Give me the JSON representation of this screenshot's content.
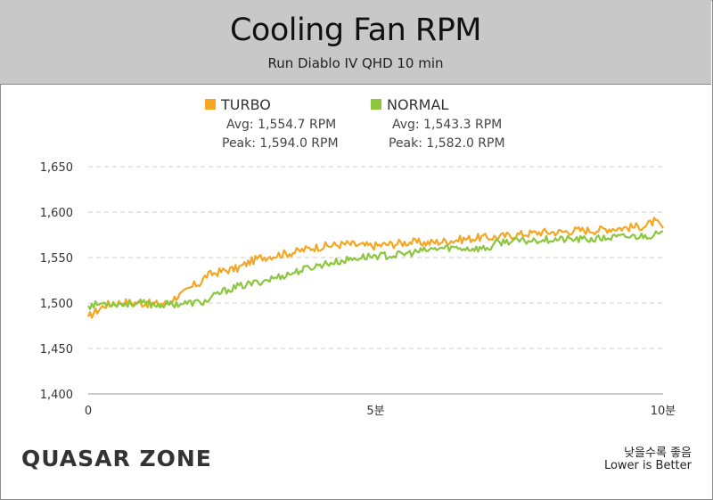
{
  "header": {
    "title": "Cooling Fan RPM",
    "subtitle": "Run Diablo IV QHD 10 min"
  },
  "legend": [
    {
      "name": "TURBO",
      "avg": "Avg: 1,554.7 RPM",
      "peak": "Peak: 1,594.0 RPM",
      "color": "#f5a623"
    },
    {
      "name": "NORMAL",
      "avg": "Avg: 1,543.3 RPM",
      "peak": "Peak: 1,582.0 RPM",
      "color": "#8dc63f"
    }
  ],
  "footer": {
    "brand": "QUASAR ZONE",
    "note_ko": "낮을수록 좋음",
    "note_en": "Lower is Better"
  },
  "chart_data": {
    "type": "line",
    "x_ticks": [
      "0",
      "5분",
      "10분"
    ],
    "x_range": [
      0,
      10
    ],
    "y_ticks": [
      "1,400",
      "1,450",
      "1,500",
      "1,550",
      "1,600",
      "1,650"
    ],
    "ylim": [
      1400,
      1650
    ],
    "grid": "horizontal dashed",
    "series": [
      {
        "name": "TURBO",
        "color": "#f5a623",
        "points": [
          [
            0,
            1485
          ],
          [
            0.3,
            1498
          ],
          [
            0.6,
            1501
          ],
          [
            0.9,
            1500
          ],
          [
            1.2,
            1499
          ],
          [
            1.4,
            1500
          ],
          [
            1.55,
            1508
          ],
          [
            1.65,
            1510
          ],
          [
            1.75,
            1515
          ],
          [
            1.85,
            1520
          ],
          [
            1.95,
            1522
          ],
          [
            2.05,
            1530
          ],
          [
            2.2,
            1533
          ],
          [
            2.4,
            1536
          ],
          [
            2.6,
            1538
          ],
          [
            2.8,
            1545
          ],
          [
            3.0,
            1550
          ],
          [
            3.3,
            1553
          ],
          [
            3.6,
            1556
          ],
          [
            3.9,
            1561
          ],
          [
            4.2,
            1563
          ],
          [
            4.5,
            1565
          ],
          [
            4.8,
            1563
          ],
          [
            5.0,
            1563
          ],
          [
            5.3,
            1565
          ],
          [
            5.6,
            1567
          ],
          [
            5.9,
            1566
          ],
          [
            6.2,
            1568
          ],
          [
            6.5,
            1570
          ],
          [
            6.8,
            1572
          ],
          [
            7.0,
            1572
          ],
          [
            7.3,
            1574
          ],
          [
            7.6,
            1576
          ],
          [
            7.9,
            1578
          ],
          [
            8.2,
            1578
          ],
          [
            8.5,
            1580
          ],
          [
            8.8,
            1580
          ],
          [
            9.1,
            1582
          ],
          [
            9.4,
            1583
          ],
          [
            9.7,
            1585
          ],
          [
            9.85,
            1590
          ],
          [
            10.0,
            1582
          ]
        ]
      },
      {
        "name": "NORMAL",
        "color": "#8dc63f",
        "points": [
          [
            0,
            1497
          ],
          [
            0.3,
            1500
          ],
          [
            0.6,
            1499
          ],
          [
            0.9,
            1500
          ],
          [
            1.2,
            1498
          ],
          [
            1.5,
            1499
          ],
          [
            1.8,
            1500
          ],
          [
            2.0,
            1501
          ],
          [
            2.1,
            1503
          ],
          [
            2.2,
            1508
          ],
          [
            2.35,
            1513
          ],
          [
            2.6,
            1518
          ],
          [
            2.9,
            1522
          ],
          [
            3.2,
            1527
          ],
          [
            3.5,
            1532
          ],
          [
            3.8,
            1538
          ],
          [
            4.1,
            1543
          ],
          [
            4.4,
            1546
          ],
          [
            4.7,
            1550
          ],
          [
            5.0,
            1552
          ],
          [
            5.3,
            1552
          ],
          [
            5.6,
            1555
          ],
          [
            5.9,
            1558
          ],
          [
            6.1,
            1560
          ],
          [
            6.3,
            1561
          ],
          [
            6.6,
            1560
          ],
          [
            6.9,
            1560
          ],
          [
            7.0,
            1561
          ],
          [
            7.1,
            1566
          ],
          [
            7.3,
            1568
          ],
          [
            7.6,
            1568
          ],
          [
            7.9,
            1570
          ],
          [
            8.2,
            1570
          ],
          [
            8.5,
            1570
          ],
          [
            8.8,
            1570
          ],
          [
            9.1,
            1572
          ],
          [
            9.4,
            1573
          ],
          [
            9.7,
            1574
          ],
          [
            10.0,
            1576
          ]
        ]
      }
    ]
  }
}
